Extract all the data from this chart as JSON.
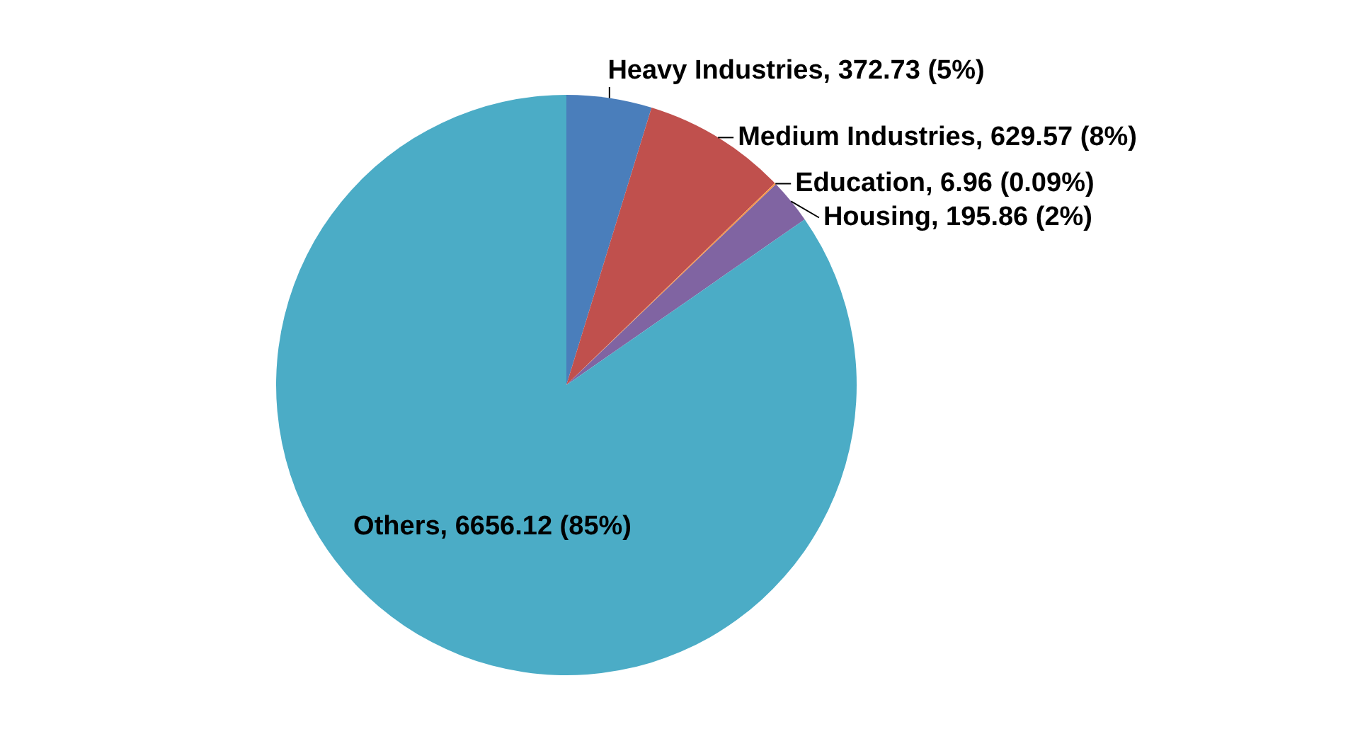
{
  "chart_data": {
    "type": "pie",
    "categories": [
      "Heavy Industries",
      "Medium Industries",
      "Education",
      "Housing",
      "Others"
    ],
    "values": [
      372.73,
      629.57,
      6.96,
      195.86,
      6656.12
    ],
    "colors": [
      "#4a7ebb",
      "#c0504d",
      "#f79646",
      "#8064a2",
      "#4bacc6"
    ],
    "value_labels": [
      "372.73 (5%)",
      "629.57 (8%)",
      "6.96 (0.09%)",
      "195.86 (2%)",
      "6656.12 (85%)"
    ]
  }
}
